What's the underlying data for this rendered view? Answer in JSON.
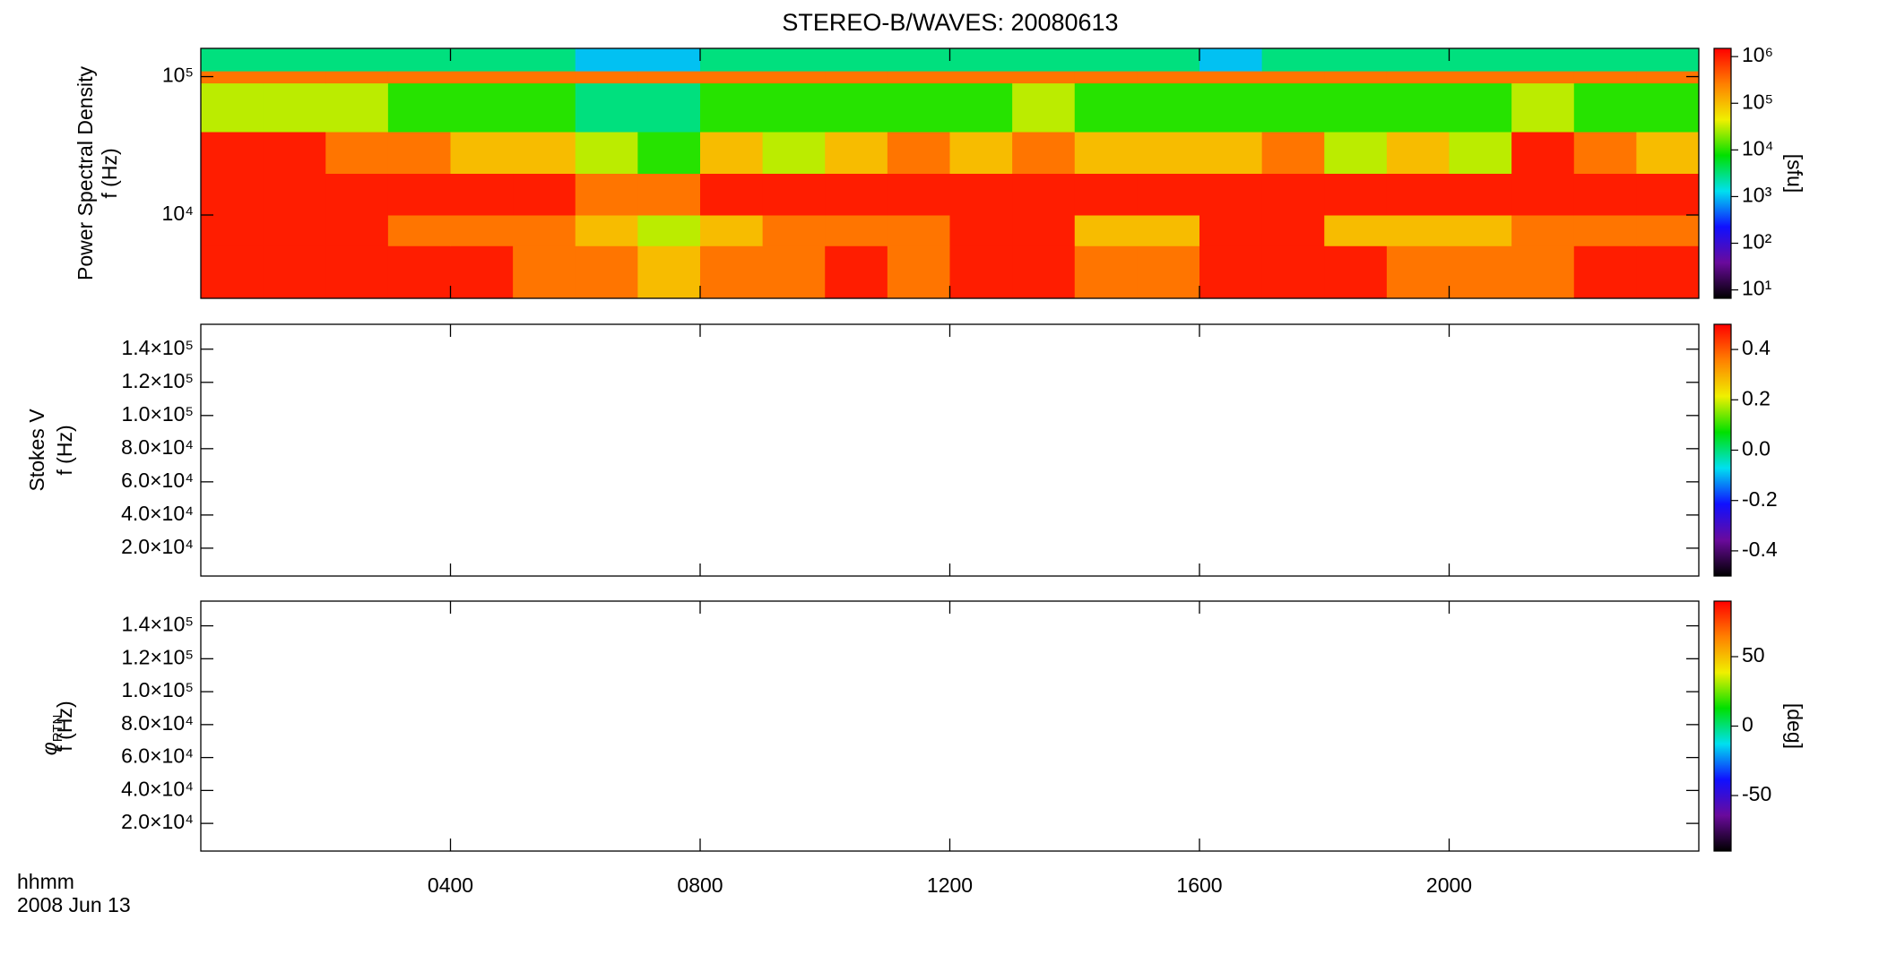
{
  "chart_data": [
    {
      "type": "heatmap",
      "title": "STEREO-B/WAVES: 20080613",
      "ylabel": [
        "Power Spectral Density",
        "f (Hz)"
      ],
      "ylog": true,
      "ylim": [
        2500,
        160000
      ],
      "yticks": [
        {
          "value": 10000,
          "label": "10⁴"
        },
        {
          "value": 100000,
          "label": "10⁵"
        }
      ],
      "xlim": [
        0,
        24
      ],
      "time_bins": [
        0,
        1,
        2,
        3,
        4,
        5,
        6,
        7,
        8,
        9,
        10,
        11,
        12,
        13,
        14,
        15,
        16,
        17,
        18,
        19,
        20,
        21,
        22,
        23,
        24
      ],
      "freq_bins": [
        2500,
        6000,
        10000,
        20000,
        40000,
        90000,
        110000,
        160000
      ],
      "z": [
        [
          1000000.0,
          1000000.0,
          1000000.0,
          1000000.0,
          1000000.0,
          300000.0,
          300000.0,
          100000.0,
          300000.0,
          300000.0,
          1000000.0,
          300000.0,
          1000000.0,
          1000000.0,
          300000.0,
          300000.0,
          1000000.0,
          1000000.0,
          1000000.0,
          300000.0,
          300000.0,
          300000.0,
          1000000.0,
          1000000.0
        ],
        [
          1000000.0,
          1000000.0,
          1000000.0,
          300000.0,
          300000.0,
          300000.0,
          100000.0,
          30000.0,
          100000.0,
          300000.0,
          300000.0,
          300000.0,
          1000000.0,
          1000000.0,
          100000.0,
          100000.0,
          1000000.0,
          1000000.0,
          100000.0,
          100000.0,
          100000.0,
          300000.0,
          300000.0,
          300000.0
        ],
        [
          1000000.0,
          1000000.0,
          1000000.0,
          1000000.0,
          1000000.0,
          1000000.0,
          300000.0,
          300000.0,
          1000000.0,
          1000000.0,
          1000000.0,
          1000000.0,
          1000000.0,
          1000000.0,
          1000000.0,
          1000000.0,
          1000000.0,
          1000000.0,
          1000000.0,
          1000000.0,
          1000000.0,
          1000000.0,
          1000000.0,
          1000000.0
        ],
        [
          1000000.0,
          1000000.0,
          300000.0,
          300000.0,
          100000.0,
          100000.0,
          30000.0,
          10000.0,
          100000.0,
          30000.0,
          100000.0,
          300000.0,
          100000.0,
          300000.0,
          100000.0,
          100000.0,
          100000.0,
          300000.0,
          30000.0,
          100000.0,
          30000.0,
          1000000.0,
          300000.0,
          100000.0
        ],
        [
          30000.0,
          30000.0,
          30000.0,
          10000.0,
          10000.0,
          10000.0,
          3000.0,
          3000.0,
          10000.0,
          10000.0,
          10000.0,
          10000.0,
          10000.0,
          30000.0,
          10000.0,
          10000.0,
          10000.0,
          10000.0,
          10000.0,
          10000.0,
          10000.0,
          30000.0,
          10000.0,
          10000.0
        ],
        [
          300000.0,
          300000.0,
          300000.0,
          300000.0,
          300000.0,
          300000.0,
          300000.0,
          300000.0,
          300000.0,
          300000.0,
          300000.0,
          300000.0,
          300000.0,
          300000.0,
          300000.0,
          300000.0,
          300000.0,
          300000.0,
          300000.0,
          300000.0,
          300000.0,
          300000.0,
          300000.0,
          300000.0
        ],
        [
          3000.0,
          3000.0,
          3000.0,
          3000.0,
          3000.0,
          3000.0,
          1000.0,
          1000.0,
          3000.0,
          3000.0,
          3000.0,
          3000.0,
          3000.0,
          3000.0,
          3000.0,
          3000.0,
          1000.0,
          3000.0,
          3000.0,
          3000.0,
          3000.0,
          3000.0,
          3000.0,
          3000.0
        ]
      ],
      "colormap": [
        "#000000",
        "#6a0a9c",
        "#1010ff",
        "#00e0f0",
        "#00e000",
        "#f0f000",
        "#ff8000",
        "#ff0000"
      ],
      "colorbar": {
        "log": true,
        "lim": [
          6.6,
          1500000
        ],
        "ticks": [
          {
            "value": 10,
            "label": "10¹"
          },
          {
            "value": 100,
            "label": "10²"
          },
          {
            "value": 1000,
            "label": "10³"
          },
          {
            "value": 10000,
            "label": "10⁴"
          },
          {
            "value": 100000,
            "label": "10⁵"
          },
          {
            "value": 1000000,
            "label": "10⁶"
          }
        ],
        "label": "[sfu]"
      }
    },
    {
      "type": "heatmap",
      "ylabel": [
        "Stokes V",
        "f (Hz)"
      ],
      "ylim": [
        3200,
        155000
      ],
      "yticks": [
        {
          "value": 20000,
          "label": "2.0×10⁴"
        },
        {
          "value": 40000,
          "label": "4.0×10⁴"
        },
        {
          "value": 60000,
          "label": "6.0×10⁴"
        },
        {
          "value": 80000,
          "label": "8.0×10⁴"
        },
        {
          "value": 100000,
          "label": "1.0×10⁵"
        },
        {
          "value": 120000,
          "label": "1.2×10⁵"
        },
        {
          "value": 140000,
          "label": "1.4×10⁵"
        }
      ],
      "xlim": [
        0,
        24
      ],
      "colormap": [
        "#000000",
        "#6a0a9c",
        "#1010ff",
        "#00e0f0",
        "#00e000",
        "#f0f000",
        "#ff8000",
        "#ff0000"
      ],
      "colorbar": {
        "lim": [
          -0.5,
          0.5
        ],
        "ticks": [
          -0.4,
          -0.2,
          {
            "value": 0,
            "label": "0.0"
          },
          0.2,
          0.4
        ]
      }
    },
    {
      "type": "heatmap",
      "ylabel": [
        "φ",
        "RTN",
        "f (Hz)"
      ],
      "ylim": [
        3200,
        155000
      ],
      "yticks": [
        {
          "value": 20000,
          "label": "2.0×10⁴"
        },
        {
          "value": 40000,
          "label": "4.0×10⁴"
        },
        {
          "value": 60000,
          "label": "6.0×10⁴"
        },
        {
          "value": 80000,
          "label": "8.0×10⁴"
        },
        {
          "value": 100000,
          "label": "1.0×10⁵"
        },
        {
          "value": 120000,
          "label": "1.2×10⁵"
        },
        {
          "value": 140000,
          "label": "1.4×10⁵"
        }
      ],
      "xlim": [
        0,
        24
      ],
      "xticks": [
        {
          "value": 4,
          "label": "0400"
        },
        {
          "value": 8,
          "label": "0800"
        },
        {
          "value": 12,
          "label": "1200"
        },
        {
          "value": 16,
          "label": "1600"
        },
        {
          "value": 20,
          "label": "2000"
        }
      ],
      "xlabel": [
        "hhmm",
        "2008 Jun 13"
      ],
      "colormap": [
        "#000000",
        "#6a0a9c",
        "#1010ff",
        "#00e0f0",
        "#00e000",
        "#f0f000",
        "#ff8000",
        "#ff0000"
      ],
      "colorbar": {
        "lim": [
          -90,
          90
        ],
        "ticks": [
          -50,
          0,
          50
        ],
        "label": "[deg]"
      }
    }
  ]
}
